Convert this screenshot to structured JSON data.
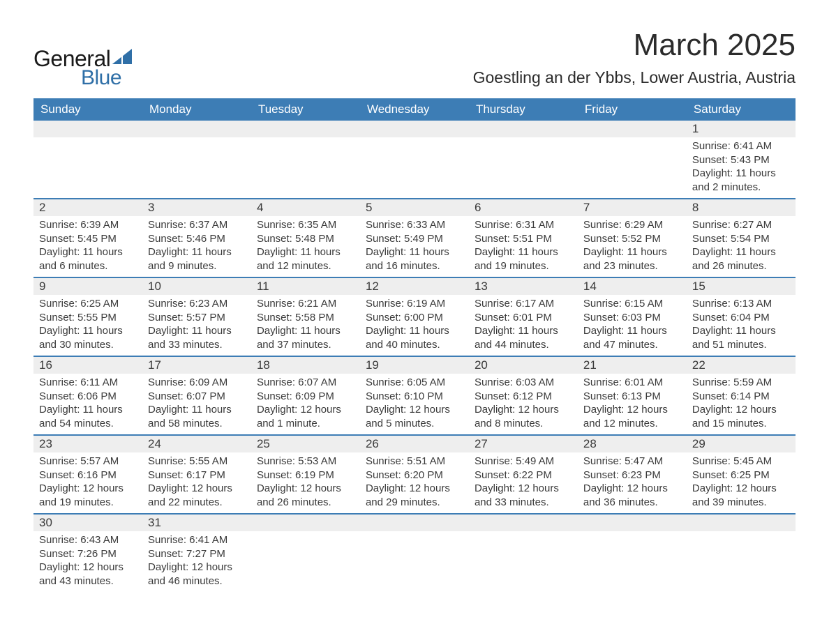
{
  "logo": {
    "text1": "General",
    "text2": "Blue",
    "shape_color": "#2f6fa7"
  },
  "title": "March 2025",
  "location": "Goestling an der Ybbs, Lower Austria, Austria",
  "colors": {
    "header_bg": "#3d7db5",
    "header_text": "#ffffff",
    "daynum_bg": "#eeeeee",
    "row_border": "#3d7db5",
    "body_text": "#3a3a3a"
  },
  "weekdays": [
    "Sunday",
    "Monday",
    "Tuesday",
    "Wednesday",
    "Thursday",
    "Friday",
    "Saturday"
  ],
  "weeks": [
    [
      null,
      null,
      null,
      null,
      null,
      null,
      {
        "d": "1",
        "sr": "Sunrise: 6:41 AM",
        "ss": "Sunset: 5:43 PM",
        "dl": "Daylight: 11 hours and 2 minutes."
      }
    ],
    [
      {
        "d": "2",
        "sr": "Sunrise: 6:39 AM",
        "ss": "Sunset: 5:45 PM",
        "dl": "Daylight: 11 hours and 6 minutes."
      },
      {
        "d": "3",
        "sr": "Sunrise: 6:37 AM",
        "ss": "Sunset: 5:46 PM",
        "dl": "Daylight: 11 hours and 9 minutes."
      },
      {
        "d": "4",
        "sr": "Sunrise: 6:35 AM",
        "ss": "Sunset: 5:48 PM",
        "dl": "Daylight: 11 hours and 12 minutes."
      },
      {
        "d": "5",
        "sr": "Sunrise: 6:33 AM",
        "ss": "Sunset: 5:49 PM",
        "dl": "Daylight: 11 hours and 16 minutes."
      },
      {
        "d": "6",
        "sr": "Sunrise: 6:31 AM",
        "ss": "Sunset: 5:51 PM",
        "dl": "Daylight: 11 hours and 19 minutes."
      },
      {
        "d": "7",
        "sr": "Sunrise: 6:29 AM",
        "ss": "Sunset: 5:52 PM",
        "dl": "Daylight: 11 hours and 23 minutes."
      },
      {
        "d": "8",
        "sr": "Sunrise: 6:27 AM",
        "ss": "Sunset: 5:54 PM",
        "dl": "Daylight: 11 hours and 26 minutes."
      }
    ],
    [
      {
        "d": "9",
        "sr": "Sunrise: 6:25 AM",
        "ss": "Sunset: 5:55 PM",
        "dl": "Daylight: 11 hours and 30 minutes."
      },
      {
        "d": "10",
        "sr": "Sunrise: 6:23 AM",
        "ss": "Sunset: 5:57 PM",
        "dl": "Daylight: 11 hours and 33 minutes."
      },
      {
        "d": "11",
        "sr": "Sunrise: 6:21 AM",
        "ss": "Sunset: 5:58 PM",
        "dl": "Daylight: 11 hours and 37 minutes."
      },
      {
        "d": "12",
        "sr": "Sunrise: 6:19 AM",
        "ss": "Sunset: 6:00 PM",
        "dl": "Daylight: 11 hours and 40 minutes."
      },
      {
        "d": "13",
        "sr": "Sunrise: 6:17 AM",
        "ss": "Sunset: 6:01 PM",
        "dl": "Daylight: 11 hours and 44 minutes."
      },
      {
        "d": "14",
        "sr": "Sunrise: 6:15 AM",
        "ss": "Sunset: 6:03 PM",
        "dl": "Daylight: 11 hours and 47 minutes."
      },
      {
        "d": "15",
        "sr": "Sunrise: 6:13 AM",
        "ss": "Sunset: 6:04 PM",
        "dl": "Daylight: 11 hours and 51 minutes."
      }
    ],
    [
      {
        "d": "16",
        "sr": "Sunrise: 6:11 AM",
        "ss": "Sunset: 6:06 PM",
        "dl": "Daylight: 11 hours and 54 minutes."
      },
      {
        "d": "17",
        "sr": "Sunrise: 6:09 AM",
        "ss": "Sunset: 6:07 PM",
        "dl": "Daylight: 11 hours and 58 minutes."
      },
      {
        "d": "18",
        "sr": "Sunrise: 6:07 AM",
        "ss": "Sunset: 6:09 PM",
        "dl": "Daylight: 12 hours and 1 minute."
      },
      {
        "d": "19",
        "sr": "Sunrise: 6:05 AM",
        "ss": "Sunset: 6:10 PM",
        "dl": "Daylight: 12 hours and 5 minutes."
      },
      {
        "d": "20",
        "sr": "Sunrise: 6:03 AM",
        "ss": "Sunset: 6:12 PM",
        "dl": "Daylight: 12 hours and 8 minutes."
      },
      {
        "d": "21",
        "sr": "Sunrise: 6:01 AM",
        "ss": "Sunset: 6:13 PM",
        "dl": "Daylight: 12 hours and 12 minutes."
      },
      {
        "d": "22",
        "sr": "Sunrise: 5:59 AM",
        "ss": "Sunset: 6:14 PM",
        "dl": "Daylight: 12 hours and 15 minutes."
      }
    ],
    [
      {
        "d": "23",
        "sr": "Sunrise: 5:57 AM",
        "ss": "Sunset: 6:16 PM",
        "dl": "Daylight: 12 hours and 19 minutes."
      },
      {
        "d": "24",
        "sr": "Sunrise: 5:55 AM",
        "ss": "Sunset: 6:17 PM",
        "dl": "Daylight: 12 hours and 22 minutes."
      },
      {
        "d": "25",
        "sr": "Sunrise: 5:53 AM",
        "ss": "Sunset: 6:19 PM",
        "dl": "Daylight: 12 hours and 26 minutes."
      },
      {
        "d": "26",
        "sr": "Sunrise: 5:51 AM",
        "ss": "Sunset: 6:20 PM",
        "dl": "Daylight: 12 hours and 29 minutes."
      },
      {
        "d": "27",
        "sr": "Sunrise: 5:49 AM",
        "ss": "Sunset: 6:22 PM",
        "dl": "Daylight: 12 hours and 33 minutes."
      },
      {
        "d": "28",
        "sr": "Sunrise: 5:47 AM",
        "ss": "Sunset: 6:23 PM",
        "dl": "Daylight: 12 hours and 36 minutes."
      },
      {
        "d": "29",
        "sr": "Sunrise: 5:45 AM",
        "ss": "Sunset: 6:25 PM",
        "dl": "Daylight: 12 hours and 39 minutes."
      }
    ],
    [
      {
        "d": "30",
        "sr": "Sunrise: 6:43 AM",
        "ss": "Sunset: 7:26 PM",
        "dl": "Daylight: 12 hours and 43 minutes."
      },
      {
        "d": "31",
        "sr": "Sunrise: 6:41 AM",
        "ss": "Sunset: 7:27 PM",
        "dl": "Daylight: 12 hours and 46 minutes."
      },
      null,
      null,
      null,
      null,
      null
    ]
  ]
}
